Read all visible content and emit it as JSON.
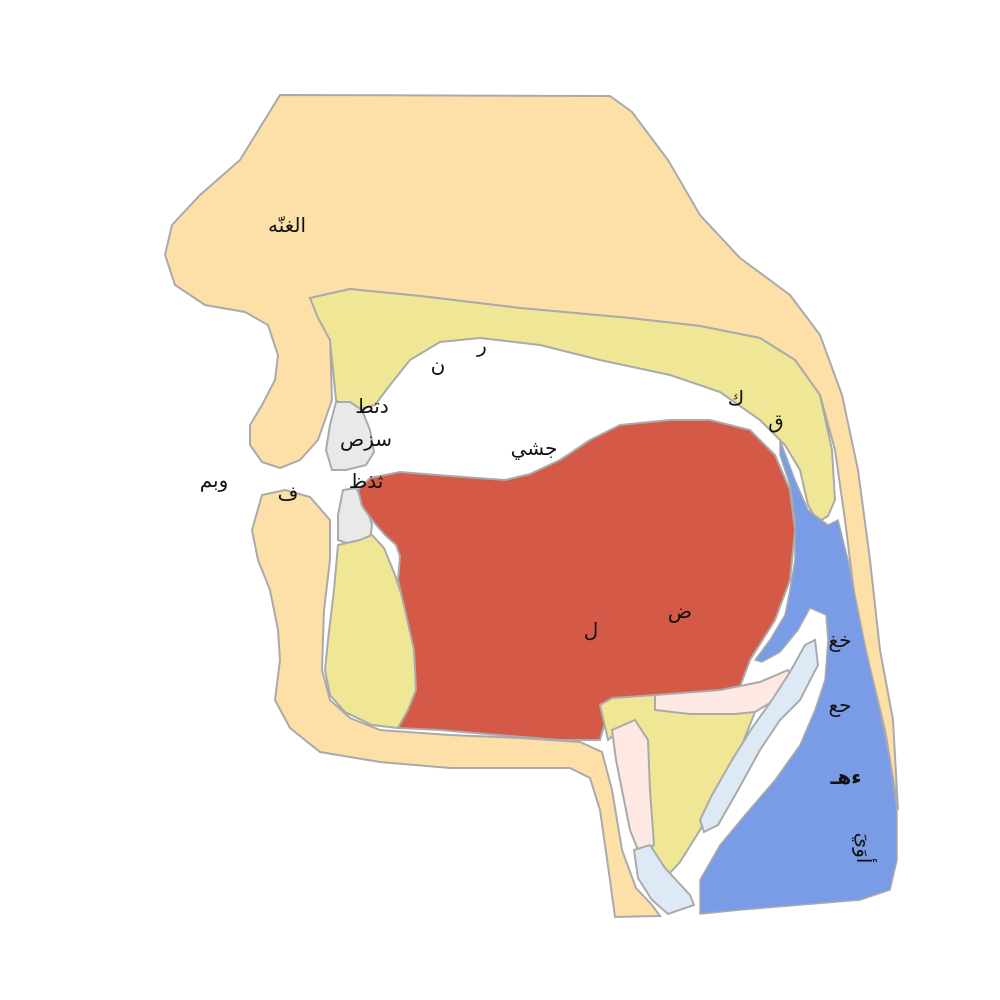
{
  "colors": {
    "skin": "#fddfa8",
    "bone_yellow": "#efe795",
    "tongue": "#d45a47",
    "pharynx": "#7a9be6",
    "teeth": "#e9e9e9",
    "cartilage_pink": "#fde8e4",
    "cartilage_blue": "#ddeaf6",
    "outline": "#aaaaaa"
  },
  "labels": {
    "nasal": "الغنّه",
    "alveolar_r": "ر",
    "alveolar_n": "ن",
    "dental_dtt": "دتط",
    "dental_szs": "سزص",
    "interdental": "ثذظ",
    "labial": "وبم",
    "labiodental": "ف",
    "palatal": "جشي",
    "velar_k": "ك",
    "uvular_q": "ق",
    "lateral": "ل",
    "dad": "ض",
    "upper_pharynx": "خغ",
    "mid_pharynx": "حع",
    "glottal": "ءهـ",
    "vowels": "أوَيَ"
  }
}
